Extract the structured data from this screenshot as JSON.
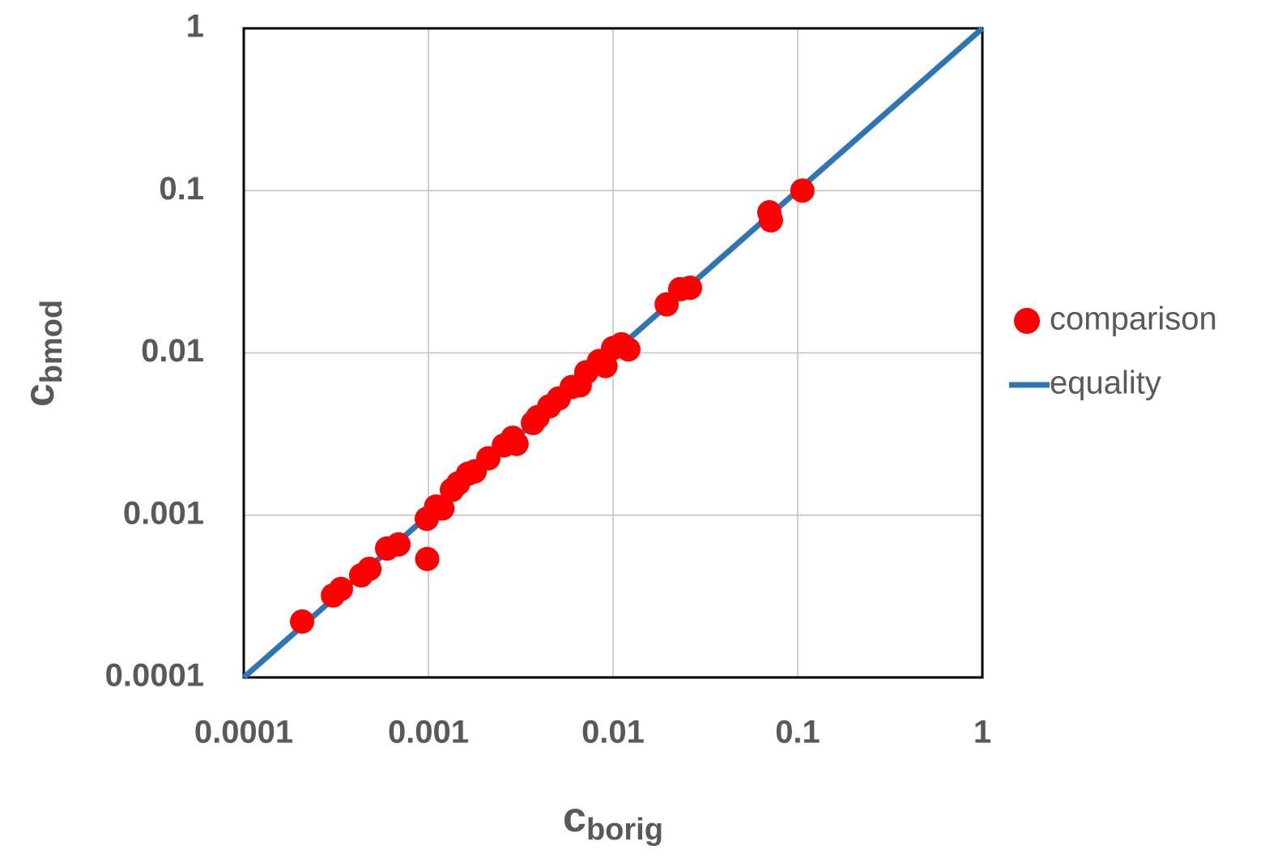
{
  "chart_data": {
    "type": "scatter",
    "x_label": {
      "main": "c",
      "sub": "borig"
    },
    "y_label": {
      "main": "c",
      "sub": "bmod"
    },
    "log_x": true,
    "log_y": true,
    "grid": true,
    "legend": "right",
    "xlim": [
      0.0001,
      1
    ],
    "ylim": [
      0.0001,
      1
    ],
    "xticks": [
      0.0001,
      0.001,
      0.01,
      0.1,
      1
    ],
    "yticks": [
      0.0001,
      0.001,
      0.01,
      0.1,
      1
    ],
    "series": [
      {
        "name": "comparison",
        "color": "#ff0000",
        "mode": "markers",
        "x": [
          0.000207,
          0.000304,
          0.000336,
          0.000432,
          0.000479,
          0.000597,
          0.000688,
          0.00098,
          0.000985,
          0.0011,
          0.00119,
          0.00134,
          0.00145,
          0.00164,
          0.00178,
          0.00211,
          0.00256,
          0.00286,
          0.003,
          0.00368,
          0.00391,
          0.00451,
          0.00508,
          0.00597,
          0.0066,
          0.00716,
          0.0084,
          0.0091,
          0.01,
          0.0111,
          0.0121,
          0.0195,
          0.0231,
          0.0261,
          0.0702,
          0.0716,
          0.106
        ],
        "values": [
          0.000221,
          0.00032,
          0.000351,
          0.000426,
          0.000467,
          0.000623,
          0.00066,
          0.00095,
          0.000537,
          0.00113,
          0.0011,
          0.00143,
          0.00157,
          0.0018,
          0.00186,
          0.00224,
          0.00269,
          0.003,
          0.00275,
          0.0037,
          0.00402,
          0.00468,
          0.00524,
          0.00616,
          0.0063,
          0.0076,
          0.0089,
          0.0083,
          0.0107,
          0.0113,
          0.0105,
          0.0199,
          0.0247,
          0.0252,
          0.0735,
          0.0656,
          0.1
        ]
      },
      {
        "name": "equality",
        "color": "#2e75b6",
        "mode": "line",
        "x": [
          0.0001,
          1
        ],
        "values": [
          0.0001,
          1
        ]
      }
    ]
  }
}
